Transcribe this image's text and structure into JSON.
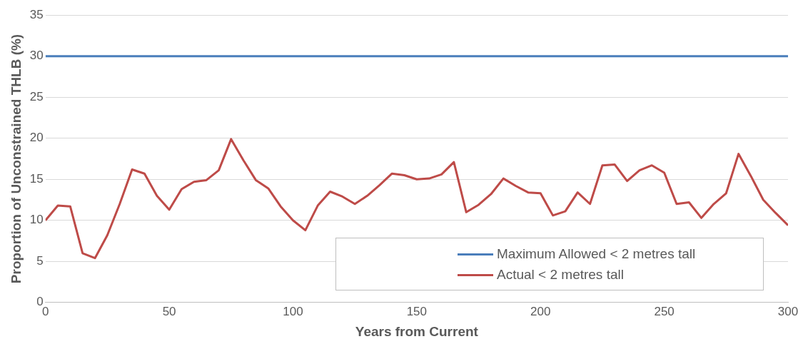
{
  "chart_data": {
    "type": "line",
    "xlabel": "Years from Current",
    "ylabel": "Proportion of Unconstrained THLB (%)",
    "x": [
      0,
      5,
      10,
      15,
      20,
      25,
      30,
      35,
      40,
      45,
      50,
      55,
      60,
      65,
      70,
      75,
      80,
      85,
      90,
      95,
      100,
      105,
      110,
      115,
      120,
      125,
      130,
      135,
      140,
      145,
      150,
      155,
      160,
      165,
      170,
      175,
      180,
      185,
      190,
      195,
      200,
      205,
      210,
      215,
      220,
      225,
      230,
      235,
      240,
      245,
      250,
      255,
      260,
      265,
      270,
      275,
      280,
      285,
      290,
      295,
      300
    ],
    "series": [
      {
        "name": "Maximum Allowed < 2 metres tall",
        "color": "#4a7ebb",
        "values": [
          30,
          30,
          30,
          30,
          30,
          30,
          30,
          30,
          30,
          30,
          30,
          30,
          30,
          30,
          30,
          30,
          30,
          30,
          30,
          30,
          30,
          30,
          30,
          30,
          30,
          30,
          30,
          30,
          30,
          30,
          30,
          30,
          30,
          30,
          30,
          30,
          30,
          30,
          30,
          30,
          30,
          30,
          30,
          30,
          30,
          30,
          30,
          30,
          30,
          30,
          30,
          30,
          30,
          30,
          30,
          30,
          30,
          30,
          30,
          30,
          30
        ]
      },
      {
        "name": "Actual < 2 metres tall",
        "color": "#be4b48",
        "values": [
          10.0,
          11.8,
          11.7,
          6.0,
          5.4,
          8.2,
          12.0,
          16.2,
          15.7,
          13.0,
          11.3,
          13.8,
          14.7,
          14.9,
          16.1,
          19.9,
          17.3,
          14.9,
          13.9,
          11.7,
          10.0,
          8.8,
          11.8,
          13.5,
          12.9,
          12.0,
          13.0,
          14.3,
          15.7,
          15.5,
          15.0,
          15.1,
          15.6,
          17.1,
          11.0,
          11.9,
          13.2,
          15.1,
          14.2,
          13.4,
          13.3,
          10.6,
          11.1,
          13.4,
          12.0,
          16.7,
          16.8,
          14.8,
          16.1,
          16.7,
          15.8,
          12.0,
          12.2,
          10.3,
          12.0,
          13.3,
          18.1,
          15.4,
          12.5,
          10.9,
          9.4
        ]
      }
    ],
    "xlim": [
      0,
      300
    ],
    "xticks": [
      0,
      50,
      100,
      150,
      200,
      250,
      300
    ],
    "ylim": [
      0,
      35
    ],
    "yticks": [
      0,
      5,
      10,
      15,
      20,
      25,
      30,
      35
    ],
    "grid": "y",
    "legend": "bottom right",
    "marker": "none",
    "line_style": "solid"
  }
}
